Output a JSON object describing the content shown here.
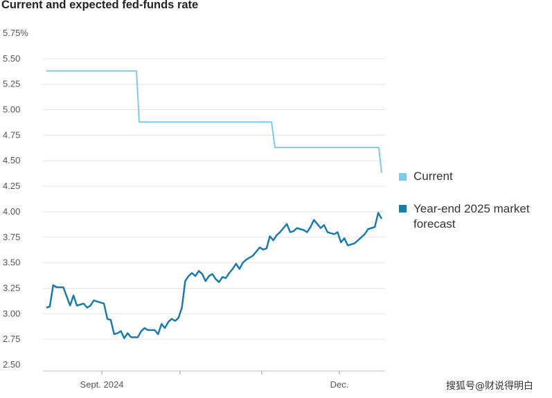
{
  "chart_data": {
    "type": "line",
    "title": "Current and expected fed-funds rate",
    "y_ticks": [
      "5.75%",
      "5.50",
      "5.25",
      "5.00",
      "4.75",
      "4.50",
      "4.25",
      "4.00",
      "3.75",
      "3.50",
      "3.25",
      "3.00",
      "2.75",
      "2.50"
    ],
    "ylim": [
      2.5,
      5.75
    ],
    "x_tick_labels": [
      "Sept. 2024",
      "Dec."
    ],
    "grid": "horizontal",
    "legend_position": "right",
    "series": [
      {
        "name": "Current",
        "color": "#7ecbe8",
        "values": [
          5.38,
          5.38,
          4.88,
          4.88,
          4.63,
          4.63,
          4.38
        ]
      },
      {
        "name": "Year-end 2025 market forecast",
        "color": "#1a7aa8",
        "values": [
          3.06,
          3.07,
          3.28,
          3.26,
          3.26,
          3.26,
          3.17,
          3.08,
          3.18,
          3.08,
          3.09,
          3.1,
          3.06,
          3.08,
          3.13,
          3.12,
          3.11,
          3.1,
          2.95,
          2.94,
          2.8,
          2.81,
          2.83,
          2.76,
          2.81,
          2.77,
          2.77,
          2.77,
          2.83,
          2.86,
          2.84,
          2.84,
          2.84,
          2.8,
          2.9,
          2.86,
          2.92,
          2.95,
          2.93,
          2.96,
          3.06,
          3.32,
          3.37,
          3.4,
          3.37,
          3.42,
          3.39,
          3.32,
          3.37,
          3.39,
          3.34,
          3.31,
          3.36,
          3.35,
          3.4,
          3.44,
          3.49,
          3.44,
          3.5,
          3.53,
          3.55,
          3.57,
          3.61,
          3.65,
          3.63,
          3.64,
          3.76,
          3.72,
          3.77,
          3.8,
          3.84,
          3.88,
          3.8,
          3.81,
          3.84,
          3.83,
          3.82,
          3.8,
          3.85,
          3.92,
          3.88,
          3.84,
          3.87,
          3.8,
          3.79,
          3.78,
          3.8,
          3.7,
          3.74,
          3.67,
          3.68,
          3.69,
          3.72,
          3.75,
          3.78,
          3.83,
          3.84,
          3.85,
          3.99,
          3.93
        ]
      }
    ],
    "watermark": "搜狐号@财说得明白"
  }
}
